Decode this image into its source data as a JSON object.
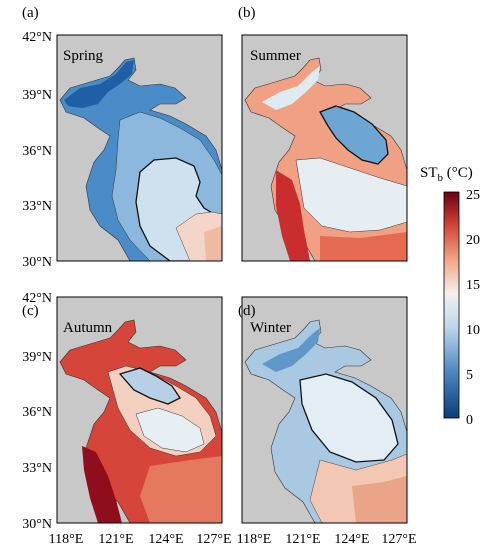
{
  "panels": [
    {
      "letter": "(a)",
      "season": "Spring"
    },
    {
      "letter": "(b)",
      "season": "Summer"
    },
    {
      "letter": "(c)",
      "season": "Autumn"
    },
    {
      "letter": "(d)",
      "season": "Winter"
    }
  ],
  "lat_ticks": [
    "42°N",
    "39°N",
    "36°N",
    "33°N",
    "30°N"
  ],
  "lon_ticks": [
    "118°E",
    "121°E",
    "124°E",
    "127°E"
  ],
  "colorbar": {
    "title_main": "ST",
    "title_sub": "b",
    "title_unit": " (°C)",
    "ticks": [
      "25",
      "20",
      "15",
      "10",
      "5",
      "0"
    ],
    "min": 0,
    "max": 25
  },
  "colors": {
    "land": "#c8c8c8",
    "cold": "#08306b",
    "neutral": "#f2f4f6",
    "warm": "#67000d"
  }
}
